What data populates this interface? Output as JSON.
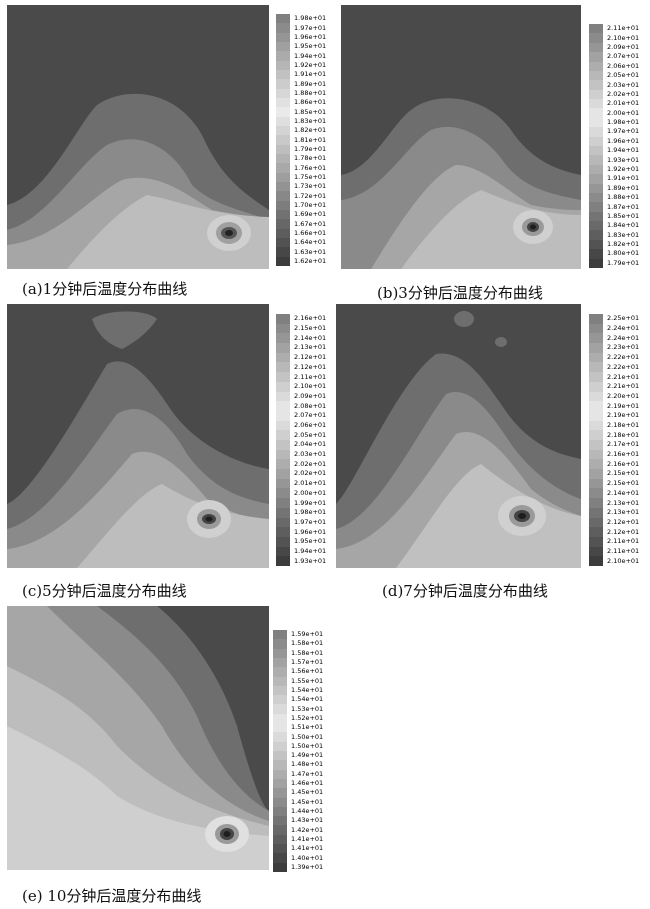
{
  "figures": [
    {
      "caption": "(a)1分钟后温度分布曲线",
      "legend": [
        "1.98e+01",
        "1.97e+01",
        "1.96e+01",
        "1.95e+01",
        "1.94e+01",
        "1.92e+01",
        "1.91e+01",
        "1.89e+01",
        "1.88e+01",
        "1.86e+01",
        "1.85e+01",
        "1.83e+01",
        "1.82e+01",
        "1.81e+01",
        "1.79e+01",
        "1.78e+01",
        "1.76e+01",
        "1.75e+01",
        "1.73e+01",
        "1.72e+01",
        "1.70e+01",
        "1.69e+01",
        "1.67e+01",
        "1.66e+01",
        "1.64e+01",
        "1.63e+01",
        "1.62e+01"
      ]
    },
    {
      "caption": "(b)3分钟后温度分布曲线",
      "legend": [
        "2.11e+01",
        "2.10e+01",
        "2.09e+01",
        "2.07e+01",
        "2.06e+01",
        "2.05e+01",
        "2.03e+01",
        "2.02e+01",
        "2.01e+01",
        "2.00e+01",
        "1.98e+01",
        "1.97e+01",
        "1.96e+01",
        "1.94e+01",
        "1.93e+01",
        "1.92e+01",
        "1.91e+01",
        "1.89e+01",
        "1.88e+01",
        "1.87e+01",
        "1.85e+01",
        "1.84e+01",
        "1.83e+01",
        "1.82e+01",
        "1.80e+01",
        "1.79e+01"
      ]
    },
    {
      "caption": "(c)5分钟后温度分布曲线",
      "legend": [
        "2.16e+01",
        "2.15e+01",
        "2.14e+01",
        "2.13e+01",
        "2.12e+01",
        "2.12e+01",
        "2.11e+01",
        "2.10e+01",
        "2.09e+01",
        "2.08e+01",
        "2.07e+01",
        "2.06e+01",
        "2.05e+01",
        "2.04e+01",
        "2.03e+01",
        "2.02e+01",
        "2.02e+01",
        "2.01e+01",
        "2.00e+01",
        "1.99e+01",
        "1.98e+01",
        "1.97e+01",
        "1.96e+01",
        "1.95e+01",
        "1.94e+01",
        "1.93e+01"
      ]
    },
    {
      "caption": "(d)7分钟后温度分布曲线",
      "legend": [
        "2.25e+01",
        "2.24e+01",
        "2.24e+01",
        "2.23e+01",
        "2.22e+01",
        "2.22e+01",
        "2.21e+01",
        "2.21e+01",
        "2.20e+01",
        "2.19e+01",
        "2.19e+01",
        "2.18e+01",
        "2.18e+01",
        "2.17e+01",
        "2.16e+01",
        "2.16e+01",
        "2.15e+01",
        "2.15e+01",
        "2.14e+01",
        "2.13e+01",
        "2.13e+01",
        "2.12e+01",
        "2.12e+01",
        "2.11e+01",
        "2.11e+01",
        "2.10e+01"
      ]
    },
    {
      "caption": "(e) 10分钟后温度分布曲线",
      "legend": [
        "1.59e+01",
        "1.58e+01",
        "1.58e+01",
        "1.57e+01",
        "1.56e+01",
        "1.55e+01",
        "1.54e+01",
        "1.54e+01",
        "1.53e+01",
        "1.52e+01",
        "1.51e+01",
        "1.50e+01",
        "1.50e+01",
        "1.49e+01",
        "1.48e+01",
        "1.47e+01",
        "1.46e+01",
        "1.45e+01",
        "1.45e+01",
        "1.44e+01",
        "1.43e+01",
        "1.42e+01",
        "1.41e+01",
        "1.41e+01",
        "1.40e+01",
        "1.39e+01"
      ]
    }
  ]
}
